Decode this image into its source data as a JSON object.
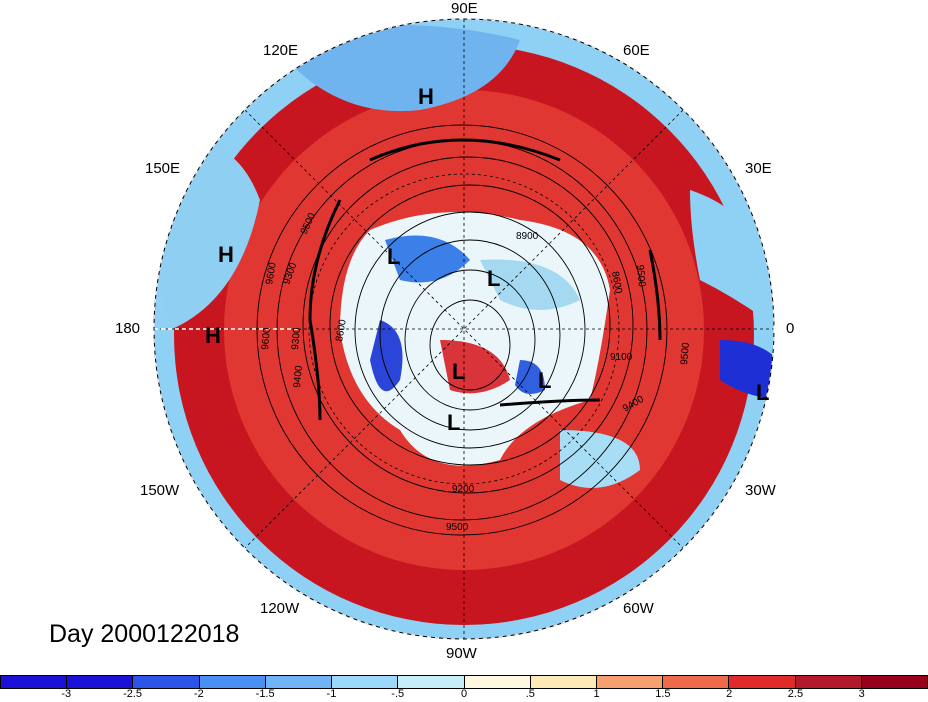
{
  "title": "Day 2000122018",
  "lon_labels": [
    {
      "name": "lon-90e",
      "text": "90E"
    },
    {
      "name": "lon-60e",
      "text": "60E"
    },
    {
      "name": "lon-30e",
      "text": "30E"
    },
    {
      "name": "lon-0",
      "text": "0"
    },
    {
      "name": "lon-30w",
      "text": "30W"
    },
    {
      "name": "lon-60w",
      "text": "60W"
    },
    {
      "name": "lon-90w",
      "text": "90W"
    },
    {
      "name": "lon-120w",
      "text": "120W"
    },
    {
      "name": "lon-150w",
      "text": "150W"
    },
    {
      "name": "lon-180",
      "text": "180"
    },
    {
      "name": "lon-150e",
      "text": "150E"
    },
    {
      "name": "lon-120e",
      "text": "120E"
    }
  ],
  "pressure_systems": [
    {
      "type": "H",
      "name": "high-north-siberia"
    },
    {
      "type": "H",
      "name": "high-north-pacific"
    },
    {
      "type": "H",
      "name": "high-dateline"
    },
    {
      "type": "L",
      "name": "low-siberia"
    },
    {
      "type": "L",
      "name": "low-arctic"
    },
    {
      "type": "L",
      "name": "low-canada"
    },
    {
      "type": "L",
      "name": "low-greenland"
    },
    {
      "type": "L",
      "name": "low-hudson"
    },
    {
      "type": "L",
      "name": "low-atlantic"
    }
  ],
  "contour_labels": [
    "8900",
    "9500",
    "9300",
    "9600",
    "8600",
    "9300",
    "9400",
    "9600",
    "8600",
    "9100",
    "9400",
    "9500",
    "9500",
    "9200",
    "9500"
  ],
  "colorbar": {
    "colors": [
      "#1a10d6",
      "#2c55e8",
      "#4a8ff2",
      "#70b3f7",
      "#9bd9fb",
      "#c6eef7",
      "#fff8e0",
      "#fde9b5",
      "#f6a070",
      "#ef6a4a",
      "#e02a2a",
      "#b3192b",
      "#99001d"
    ],
    "ticks": [
      "-3",
      "-2.5",
      "-2",
      "-1.5",
      "-1",
      "-.5",
      "0",
      ".5",
      "1",
      "1.5",
      "2",
      "2.5",
      "3"
    ]
  }
}
